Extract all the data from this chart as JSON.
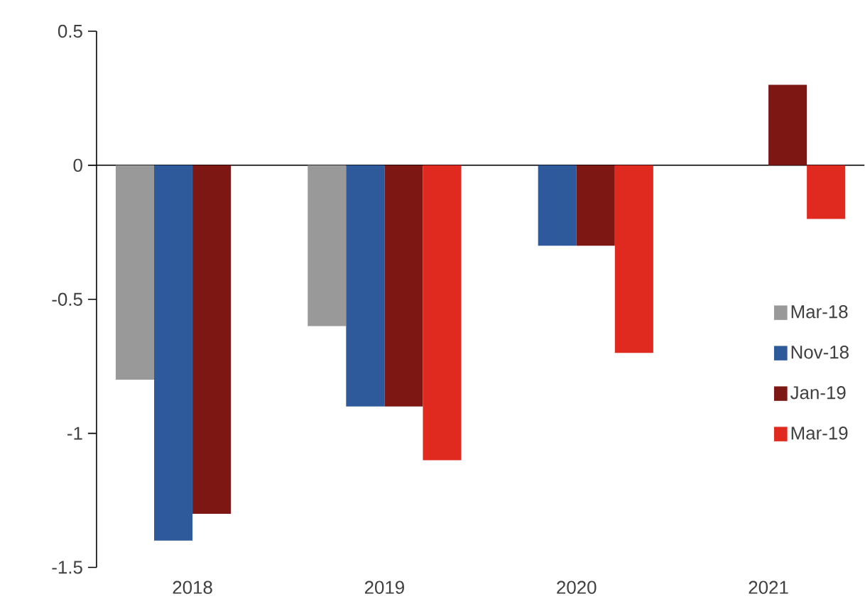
{
  "chart_data": {
    "type": "bar",
    "categories": [
      "2018",
      "2019",
      "2020",
      "2021"
    ],
    "series": [
      {
        "name": "Mar-18",
        "color": "#999999",
        "values": [
          -0.8,
          -0.6,
          null,
          null
        ]
      },
      {
        "name": "Nov-18",
        "color": "#2e5a9c",
        "values": [
          -1.4,
          -0.9,
          -0.3,
          null
        ]
      },
      {
        "name": "Jan-19",
        "color": "#7d1713",
        "values": [
          -1.3,
          -0.9,
          -0.3,
          0.3
        ]
      },
      {
        "name": "Mar-19",
        "color": "#e0291f",
        "values": [
          null,
          -1.1,
          -0.7,
          -0.2
        ]
      }
    ],
    "ref_lines": [
      {
        "axis": "y",
        "value": 0,
        "color": "#000000",
        "line_style": "solid"
      }
    ],
    "ylim": [
      -1.5,
      0.5
    ],
    "yticks": [
      0.5,
      0,
      -0.5,
      -1,
      -1.5
    ],
    "grid": false,
    "legend": "right"
  }
}
